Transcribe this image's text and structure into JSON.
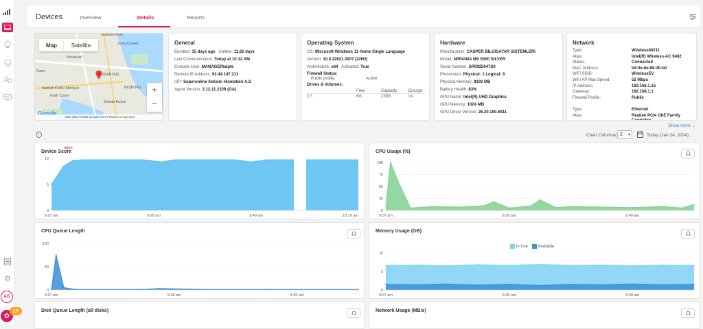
{
  "page": {
    "title": "Devices",
    "tabs": [
      {
        "label": "Overview",
        "active": false
      },
      {
        "label": "Details",
        "active": true
      },
      {
        "label": "Reports",
        "active": false
      }
    ],
    "accent_color": "#e0195b"
  },
  "sidebar": {
    "avatar_initials": "AG",
    "notification_count": "17",
    "icons": [
      "signal-icon",
      "devices-icon",
      "bulb-icon",
      "smile-icon",
      "people-icon",
      "monitor-icon",
      "list-icon",
      "gear-icon"
    ]
  },
  "map": {
    "map_label": "Map",
    "satellite_label": "Satellite",
    "zoom_in": "+",
    "zoom_out": "−",
    "footer": "Map data ©2024 Google   Terms   Report a map error",
    "places": [
      "İstanbul AVM",
      "Zorlu Center",
      "Miniaturk",
      "Cami",
      "Atatürk Kültür Merkezi",
      "NİŞANTAŞI",
      "BEŞİKTAŞ",
      "Fatih Camii",
      "Galata Kulesi",
      "Google"
    ]
  },
  "general": {
    "title": "General",
    "enrolled_label": "Enrolled:",
    "enrolled": "15 days ago",
    "uptime_label": "Uptime:",
    "uptime": "11.82 days",
    "last_comm_label": "Last Communication:",
    "last_comm": "Today at 10:12 AM",
    "console_user_label": "Console User:",
    "console_user": "MANAGER\\alpte",
    "remote_ip_label": "Remote IP Address:",
    "remote_ip": "92.44.147.211",
    "isp_label": "ISP:",
    "isp": "Superonline Iletisim Hizmetleri A.S",
    "agent_label": "Agent Version:",
    "agent": "2.12.11.2328 (GA)"
  },
  "os": {
    "title": "Operating System",
    "os_label": "OS:",
    "os": "Microsoft Windows 11 Home Single Language",
    "version_label": "Version:",
    "version": "10.0.22621.3007 (22H2)",
    "arch_label": "Architecture:",
    "arch": "x64",
    "activated_label": "Activated:",
    "activated": "True",
    "firewall_label": "Firewall Status:",
    "firewall_profile": "Public profile",
    "firewall_state": "Active",
    "drives_label": "Drives & Volumes:",
    "drive_headers": [
      "Free",
      "Capacity",
      "Encrypt"
    ],
    "drives": [
      {
        "name": "C:\\",
        "free": "6G",
        "capacity": "239G",
        "encrypt": "no"
      }
    ]
  },
  "hardware": {
    "title": "Hardware",
    "manufacturer_label": "Manufacturer:",
    "manufacturer": "CASPER BILGISAYAR SISTEMLERI",
    "model_label": "Model:",
    "model": "NIRVANA NB S500 SILVER",
    "serial_label": "Serial Number:",
    "serial": "SR0025047S0",
    "processors_label": "Processors:",
    "processors": "Physical: 1  Logical: 8",
    "memory_label": "Physical Memory:",
    "memory": "8192 MB",
    "battery_label": "Battery Health:",
    "battery": "83%",
    "gpu_label": "GPU Name:",
    "gpu": "Intel(R) UHD Graphics",
    "gpu_mem_label": "GPU Memory:",
    "gpu_mem": "1024 MB",
    "gpu_driver_label": "GPU Driver Version:",
    "gpu_driver": "26.20.100.6911"
  },
  "network": {
    "title": "Network",
    "rows": [
      {
        "k": "Type:",
        "v": "Wireless80211"
      },
      {
        "k": "Alias:",
        "v": "Intel(R) Wireless-AC 9462"
      },
      {
        "k": "Status:",
        "v": "Connected"
      },
      {
        "k": "MAC Address:",
        "v": "b4-0e-de-88-2b-b0"
      },
      {
        "k": "WiFi SSID:",
        "v": "WirelessEV"
      },
      {
        "k": "WiFi AP Max Speed:",
        "v": "52 Mbps"
      },
      {
        "k": "IP Address:",
        "v": "192.168.1.15"
      },
      {
        "k": "Gateway:",
        "v": "192.168.1.1"
      },
      {
        "k": "Firewall Profile:",
        "v": "Public"
      },
      {
        "k": "",
        "v": ""
      },
      {
        "k": "Type:",
        "v": "Ethernet"
      },
      {
        "k": "Alias:",
        "v": "Realtek PCIe GbE Family Controller"
      }
    ],
    "show_more": "Show more"
  },
  "controls": {
    "chart_columns_label": "Chart Columns:",
    "chart_columns_value": "2",
    "date_label": "Today (Jan 24, 2024)"
  },
  "chart_titles": {
    "device_score": "Device Score",
    "beta": "BETA",
    "cpu_usage": "CPU Usage (%)",
    "cpu_queue": "CPU Queue Length",
    "memory": "Memory Usage (GB)",
    "disk_queue": "Disk Queue Length (all disks)",
    "network_usage": "Network Usage (MB/s)"
  },
  "chart_data": [
    {
      "type": "area",
      "title": "Device Score",
      "x_ticks": [
        "9:07 am",
        "9:28 am",
        "9:49 am",
        "10:10 am"
      ],
      "y_ticks": [
        0,
        5,
        10
      ],
      "ylim": [
        0,
        10
      ],
      "color": "#55bdf0",
      "gap": [
        0.79,
        0.83
      ],
      "x": [
        0,
        0.04,
        0.07,
        0.1,
        0.2,
        0.3,
        0.36,
        0.4,
        0.5,
        0.6,
        0.65,
        0.7,
        0.78,
        0.79,
        0.83,
        0.9,
        1.0
      ],
      "values": [
        5,
        8.5,
        9.6,
        9.7,
        9.7,
        9.7,
        9.3,
        9.7,
        9.7,
        9.7,
        9.3,
        9.7,
        9.7,
        9.7,
        9.7,
        9.7,
        9.7
      ]
    },
    {
      "type": "area",
      "title": "CPU Usage (%)",
      "x_ticks": [
        "9:07 am",
        "9:28 am",
        "9:49 am"
      ],
      "y_ticks": [
        0,
        25,
        50,
        75,
        100
      ],
      "ylim": [
        0,
        100
      ],
      "color": "#7fd18f",
      "x": [
        0,
        0.015,
        0.04,
        0.08,
        0.15,
        0.25,
        0.32,
        0.35,
        0.4,
        0.47,
        0.5,
        0.55,
        0.6,
        0.7,
        0.8,
        0.9,
        0.96,
        1.0
      ],
      "values": [
        5,
        100,
        60,
        5,
        8,
        7,
        10,
        18,
        5,
        9,
        22,
        6,
        8,
        7,
        6,
        8,
        5,
        12
      ]
    },
    {
      "type": "area",
      "title": "CPU Queue Length",
      "x_ticks": [
        "9:07 am",
        "9:28 am",
        "9:49 am"
      ],
      "y_ticks": [
        0,
        50,
        100
      ],
      "ylim": [
        0,
        100
      ],
      "color": "#3a8fd6",
      "x": [
        0,
        0.015,
        0.04,
        0.08,
        0.3,
        0.35,
        0.5,
        0.7,
        1.0
      ],
      "values": [
        1,
        75,
        5,
        1,
        1,
        3,
        1,
        1,
        1
      ]
    },
    {
      "type": "area",
      "title": "Memory Usage (GB)",
      "legend": [
        "In Use",
        "Available"
      ],
      "legend_position": "top-center",
      "x_ticks": [
        "9:07 am",
        "9:28 am",
        "9:49 am"
      ],
      "y_ticks": [
        0,
        5,
        10
      ],
      "ylim": [
        0,
        10
      ],
      "series": [
        {
          "name": "In Use",
          "color": "#7fd1f5",
          "x": [
            0,
            0.1,
            0.2,
            0.3,
            0.4,
            0.5,
            0.6,
            0.7,
            0.8,
            0.9,
            1.0
          ],
          "values": [
            6.6,
            6.7,
            6.5,
            6.8,
            6.6,
            6.9,
            6.6,
            6.7,
            6.5,
            6.7,
            6.6
          ]
        },
        {
          "name": "Available",
          "color": "#3a8fd6",
          "x": [
            0,
            0.1,
            0.2,
            0.3,
            0.4,
            0.5,
            0.6,
            0.7,
            0.8,
            0.9,
            1.0
          ],
          "values": [
            1.5,
            1.4,
            1.6,
            1.3,
            1.5,
            1.2,
            1.5,
            1.4,
            1.6,
            1.4,
            1.5
          ]
        }
      ]
    }
  ]
}
